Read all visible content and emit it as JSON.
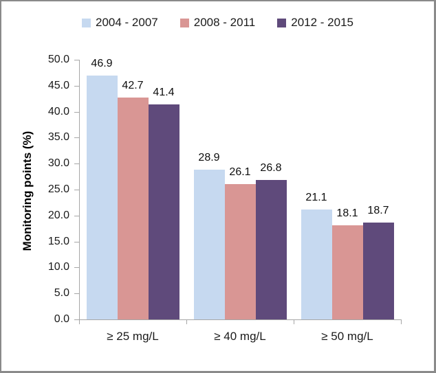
{
  "chart_data": {
    "type": "bar",
    "title": "",
    "xlabel": "",
    "ylabel": "Monitoring points (%)",
    "ylim": [
      0,
      50
    ],
    "ytick_step": 5,
    "ytick_decimals": 1,
    "grid": false,
    "legend_position": "top",
    "data_labels": true,
    "categories": [
      "≥ 25 mg/L",
      "≥ 40 mg/L",
      "≥ 50 mg/L"
    ],
    "series": [
      {
        "name": "2004 - 2007",
        "color": "#c6d9f0",
        "values": [
          46.9,
          28.9,
          21.1
        ]
      },
      {
        "name": "2008 - 2011",
        "color": "#d99694",
        "values": [
          42.7,
          26.1,
          18.1
        ]
      },
      {
        "name": "2012 - 2015",
        "color": "#5f4a7b",
        "values": [
          41.4,
          26.8,
          18.7
        ]
      }
    ],
    "colors": {
      "axis": "#a6a6a6",
      "text": "#1a1a1a",
      "frame_border": "#8a8a8a",
      "background": "#ffffff"
    }
  }
}
